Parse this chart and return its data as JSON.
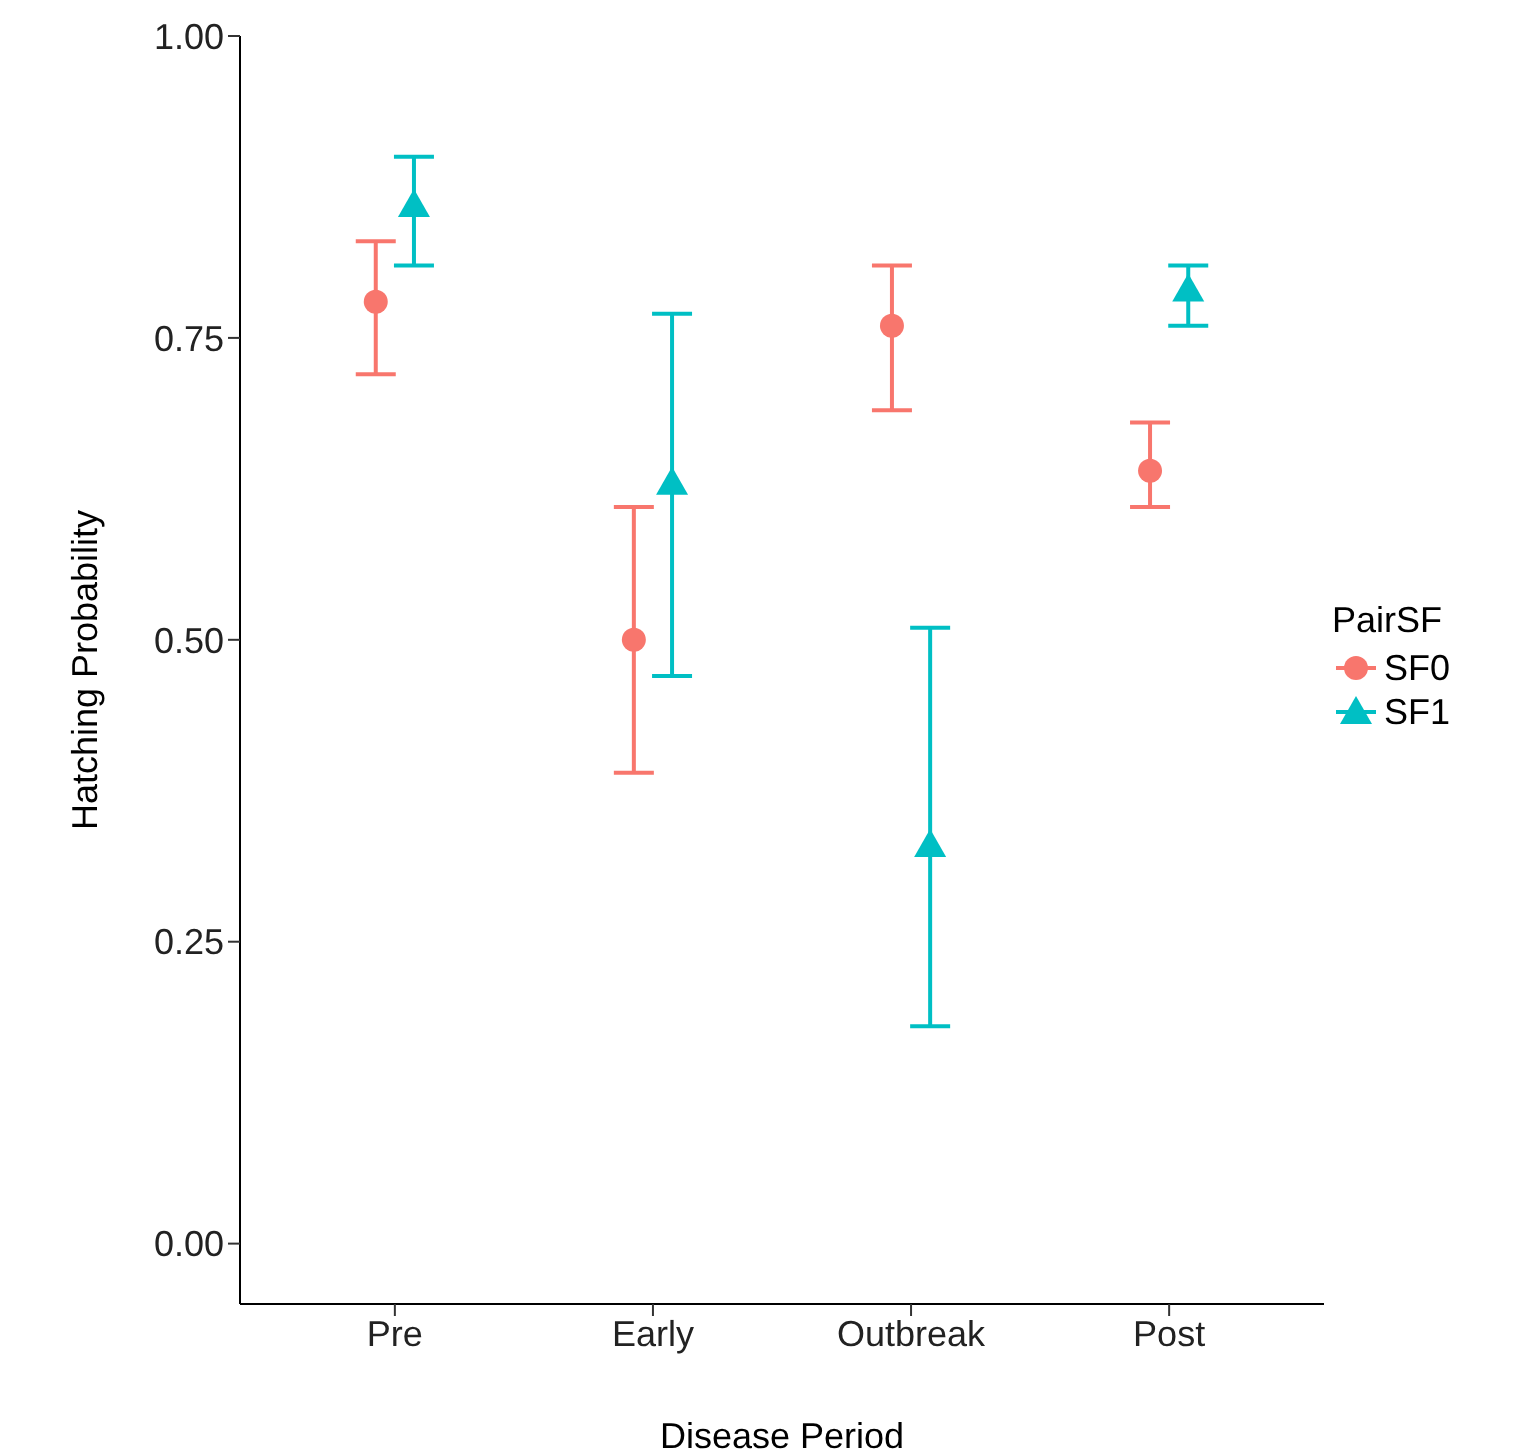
{
  "chart_data": {
    "type": "scatter",
    "xlabel": "Disease Period",
    "ylabel": "Hatching Probability",
    "legend_title": "PairSF",
    "categories": [
      "Pre",
      "Early",
      "Outbreak",
      "Post"
    ],
    "series": [
      {
        "name": "SF0",
        "color": "#f8766d",
        "marker": "circle",
        "values": [
          0.78,
          0.5,
          0.76,
          0.64
        ],
        "errors": [
          [
            0.72,
            0.83
          ],
          [
            0.39,
            0.61
          ],
          [
            0.69,
            0.81
          ],
          [
            0.61,
            0.68
          ]
        ]
      },
      {
        "name": "SF1",
        "color": "#00bfc4",
        "marker": "triangle",
        "values": [
          0.86,
          0.63,
          0.33,
          0.79
        ],
        "errors": [
          [
            0.81,
            0.9
          ],
          [
            0.47,
            0.77
          ],
          [
            0.18,
            0.51
          ],
          [
            0.76,
            0.81
          ]
        ]
      }
    ],
    "ylim": [
      -0.05,
      1.0
    ],
    "yticks": [
      {
        "value": 0,
        "label": "0.00"
      },
      {
        "value": 0.25,
        "label": "0.25"
      },
      {
        "value": 0.5,
        "label": "0.50"
      },
      {
        "value": 0.75,
        "label": "0.75"
      },
      {
        "value": 1,
        "label": "1.00"
      }
    ],
    "legend": "right"
  }
}
